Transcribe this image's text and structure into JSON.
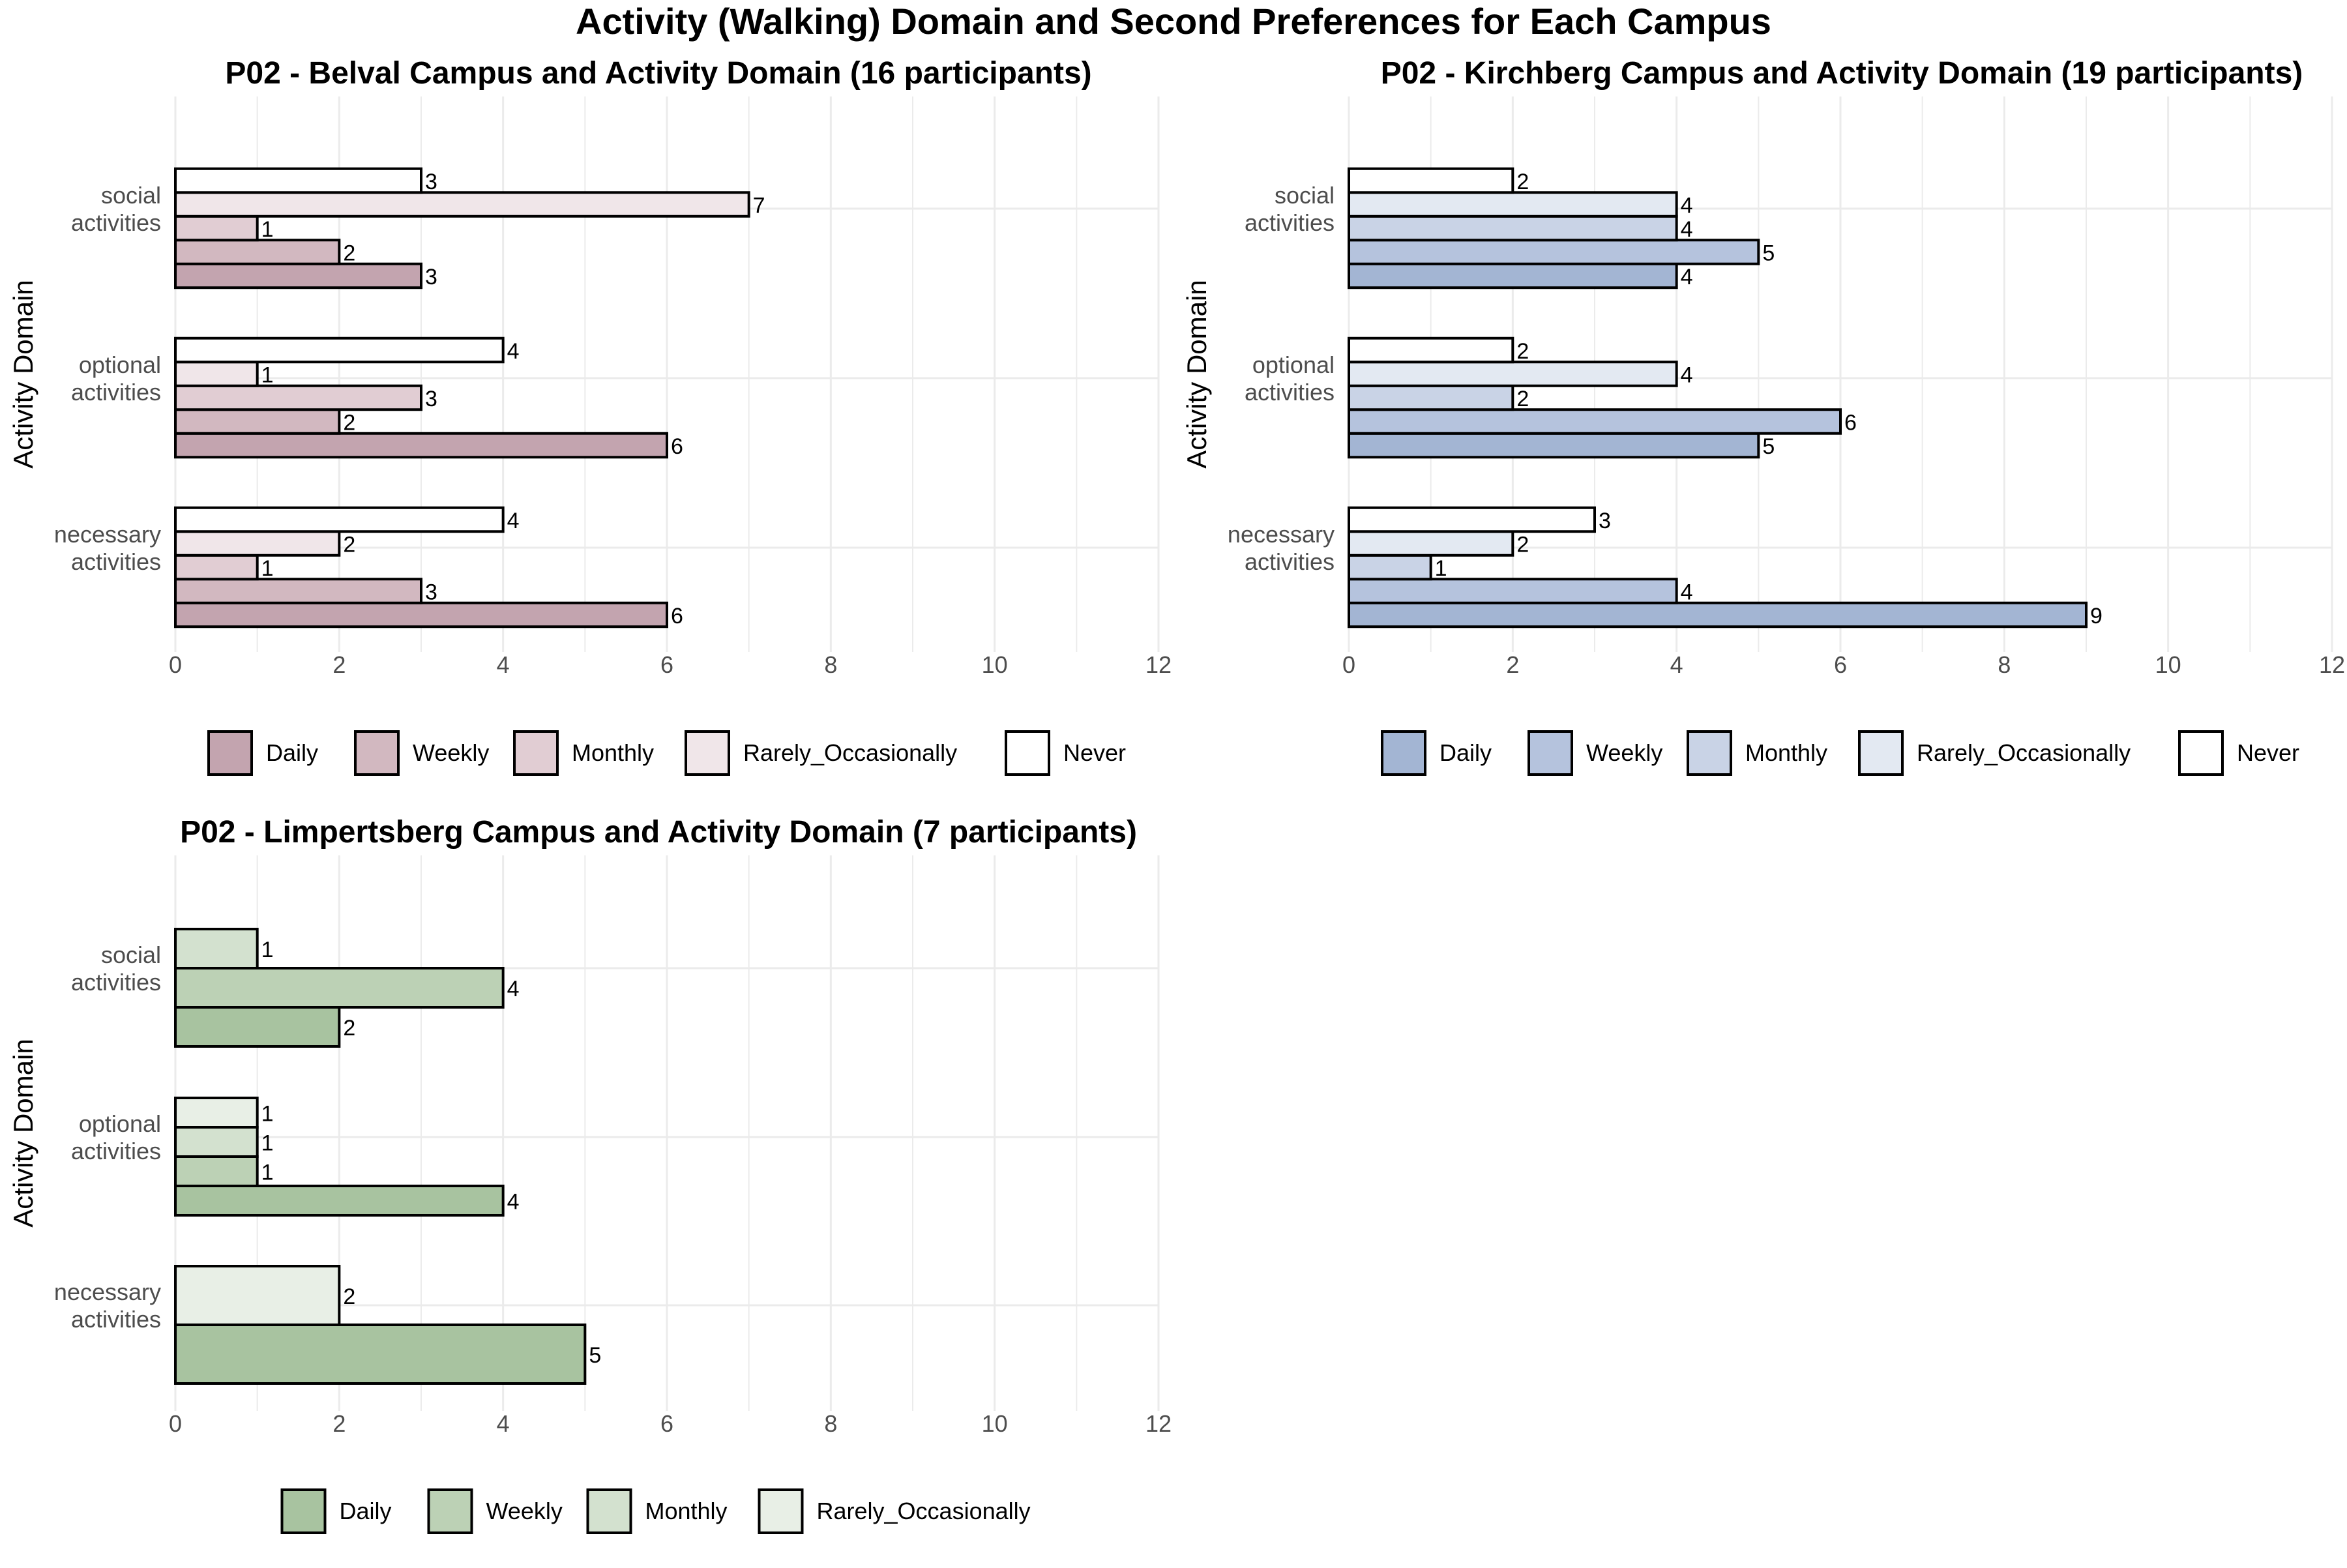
{
  "figure_title": "Activity (Walking) Domain and Second Preferences for Each Campus",
  "chart_data": [
    {
      "type": "bar",
      "orientation": "horizontal",
      "title": "P02 - Belval Campus and Activity Domain (16 participants)",
      "ylabel": "Activity Domain",
      "xlabel": "",
      "xlim": [
        0,
        12
      ],
      "xticks": [
        0,
        2,
        4,
        6,
        8,
        10,
        12
      ],
      "grid": true,
      "legend_position": "bottom",
      "categories": [
        "social activities",
        "optional activities",
        "necessary activities"
      ],
      "series": [
        {
          "name": "Daily",
          "color": "#C3A4AF",
          "values": [
            3,
            6,
            6
          ]
        },
        {
          "name": "Weekly",
          "color": "#D2B8C0",
          "values": [
            2,
            2,
            3
          ]
        },
        {
          "name": "Monthly",
          "color": "#E1CDD3",
          "values": [
            1,
            3,
            1
          ]
        },
        {
          "name": "Rarely_Occasionally",
          "color": "#F0E6E9",
          "values": [
            7,
            1,
            2
          ]
        },
        {
          "name": "Never",
          "color": "#FFFFFF",
          "values": [
            3,
            4,
            4
          ]
        }
      ]
    },
    {
      "type": "bar",
      "orientation": "horizontal",
      "title": "P02 - Kirchberg Campus and Activity Domain (19 participants)",
      "ylabel": "Activity Domain",
      "xlabel": "",
      "xlim": [
        0,
        12
      ],
      "xticks": [
        0,
        2,
        4,
        6,
        8,
        10,
        12
      ],
      "grid": true,
      "legend_position": "bottom",
      "categories": [
        "social activities",
        "optional activities",
        "necessary activities"
      ],
      "series": [
        {
          "name": "Daily",
          "color": "#A3B5D3",
          "values": [
            4,
            5,
            9
          ]
        },
        {
          "name": "Weekly",
          "color": "#B5C3DD",
          "values": [
            5,
            6,
            4
          ]
        },
        {
          "name": "Monthly",
          "color": "#C9D3E6",
          "values": [
            4,
            2,
            1
          ]
        },
        {
          "name": "Rarely_Occasionally",
          "color": "#E3E9F2",
          "values": [
            4,
            4,
            2
          ]
        },
        {
          "name": "Never",
          "color": "#FFFFFF",
          "values": [
            2,
            2,
            3
          ]
        }
      ]
    },
    {
      "type": "bar",
      "orientation": "horizontal",
      "title": "P02 - Limpertsberg Campus and Activity Domain (7 participants)",
      "ylabel": "Activity Domain",
      "xlabel": "",
      "xlim": [
        0,
        12
      ],
      "xticks": [
        0,
        2,
        4,
        6,
        8,
        10,
        12
      ],
      "grid": true,
      "legend_position": "bottom",
      "categories": [
        "social activities",
        "optional activities",
        "necessary activities"
      ],
      "series": [
        {
          "name": "Daily",
          "color": "#A8C3A0",
          "values": [
            2,
            4,
            5
          ]
        },
        {
          "name": "Weekly",
          "color": "#BCD1B5",
          "values": [
            4,
            1,
            null
          ]
        },
        {
          "name": "Monthly",
          "color": "#D3E1CF",
          "values": [
            1,
            1,
            null
          ]
        },
        {
          "name": "Rarely_Occasionally",
          "color": "#E8EFE6",
          "values": [
            null,
            1,
            2
          ]
        }
      ]
    }
  ]
}
